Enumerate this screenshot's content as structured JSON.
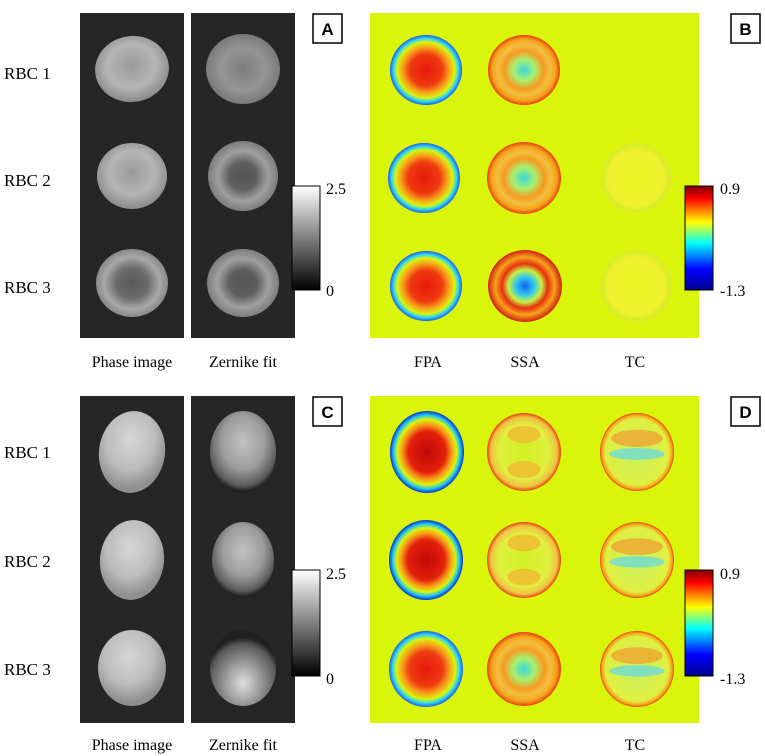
{
  "panels": [
    {
      "kind": "gray",
      "badge": "A",
      "rows": [
        "RBC 1",
        "RBC 2",
        "RBC 3"
      ],
      "columns": [
        "Phase image",
        "Zernike fit"
      ],
      "colorbar": {
        "max_label": "2.5",
        "min_label": "0",
        "scale": "grayscale"
      }
    },
    {
      "kind": "color",
      "badge": "B",
      "columns": [
        "FPA",
        "SSA",
        "TC"
      ],
      "colorbar": {
        "max_label": "0.9",
        "min_label": "-1.3",
        "scale": "jet"
      }
    },
    {
      "kind": "gray",
      "badge": "C",
      "rows": [
        "RBC 1",
        "RBC 2",
        "RBC 3"
      ],
      "columns": [
        "Phase image",
        "Zernike fit"
      ],
      "colorbar": {
        "max_label": "2.5",
        "min_label": "0",
        "scale": "grayscale"
      }
    },
    {
      "kind": "color",
      "badge": "D",
      "columns": [
        "FPA",
        "SSA",
        "TC"
      ],
      "colorbar": {
        "max_label": "0.9",
        "min_label": "-1.3",
        "scale": "jet"
      }
    }
  ],
  "colors": {
    "gray_background": "#262626",
    "color_background": "#d8f50a",
    "badge_fill": "#ffffff"
  }
}
